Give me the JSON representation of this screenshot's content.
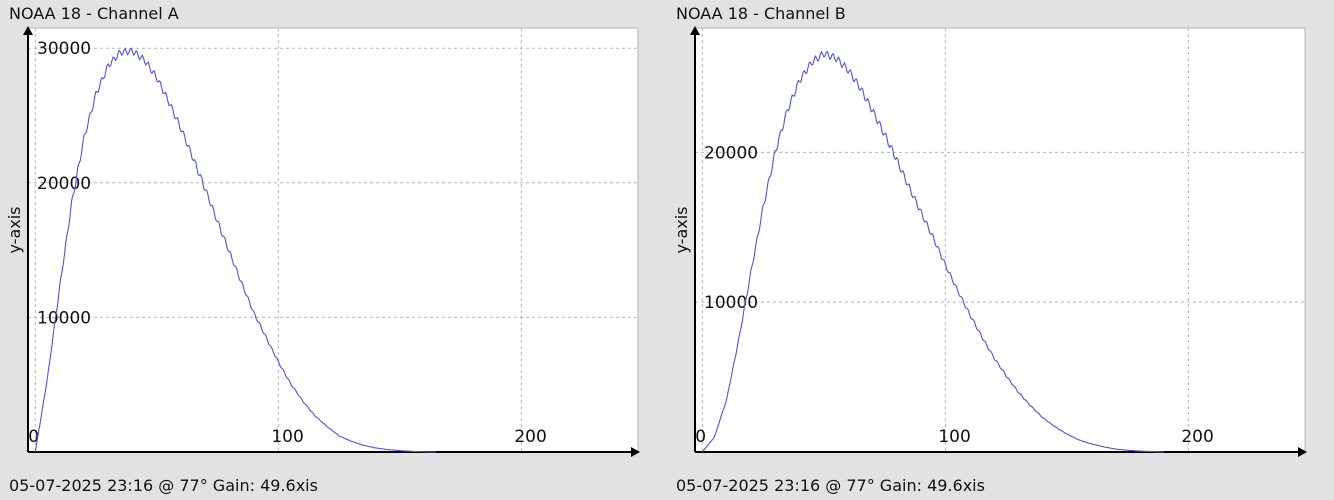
{
  "colors": {
    "line": "#4a58cf",
    "grid": "#b5b5b5",
    "background": "#ffffff",
    "axis": "#000000"
  },
  "panels": [
    {
      "title": "NOAA 18 - Channel A",
      "footer": "05-07-2025 23:16 @ 77° Gain: 49.6",
      "footer_suffix": "xis"
    },
    {
      "title": "NOAA 18 - Channel B",
      "footer": "05-07-2025 23:16 @ 77° Gain: 49.6",
      "footer_suffix": "xis"
    }
  ],
  "chart_data": [
    {
      "type": "line",
      "title": "NOAA 18 - Channel A",
      "xlabel": "",
      "ylabel": "y-axis",
      "xlim": [
        -3,
        248
      ],
      "ylim": [
        0,
        31500
      ],
      "x_ticks": [
        0,
        100,
        200
      ],
      "y_ticks": [
        10000,
        20000,
        30000
      ],
      "grid": true,
      "series": [
        {
          "x": [
            0,
            5,
            10,
            15,
            20,
            25,
            30,
            35,
            40,
            45,
            50,
            55,
            60,
            65,
            70,
            75,
            80,
            85,
            90,
            95,
            100,
            105,
            110,
            115,
            120,
            125,
            130,
            135,
            140,
            145,
            150,
            155,
            160,
            165
          ],
          "y": [
            0,
            5500,
            12200,
            18500,
            23300,
            26600,
            28700,
            29700,
            29800,
            29100,
            27800,
            26000,
            24000,
            21800,
            19500,
            17100,
            14800,
            12500,
            10300,
            8500,
            6700,
            5100,
            3800,
            2700,
            1900,
            1200,
            800,
            500,
            300,
            180,
            100,
            50,
            20,
            0
          ]
        }
      ]
    },
    {
      "type": "line",
      "title": "NOAA 18 - Channel B",
      "xlabel": "",
      "ylabel": "y-axis",
      "xlim": [
        -3,
        248
      ],
      "ylim": [
        0,
        28300
      ],
      "x_ticks": [
        0,
        100,
        200
      ],
      "y_ticks": [
        10000,
        20000
      ],
      "grid": true,
      "series": [
        {
          "x": [
            0,
            5,
            10,
            15,
            20,
            25,
            30,
            35,
            40,
            45,
            50,
            55,
            60,
            65,
            70,
            75,
            80,
            85,
            90,
            95,
            100,
            105,
            110,
            115,
            120,
            125,
            130,
            135,
            140,
            145,
            150,
            155,
            160,
            165,
            170,
            175,
            180,
            185,
            190
          ],
          "y": [
            0,
            1000,
            3500,
            7500,
            12000,
            16300,
            20000,
            22800,
            24800,
            26000,
            26600,
            26300,
            25500,
            24300,
            22800,
            21200,
            19500,
            17700,
            16000,
            14300,
            12500,
            10800,
            9200,
            7700,
            6300,
            5100,
            4000,
            3100,
            2300,
            1700,
            1200,
            800,
            550,
            350,
            200,
            120,
            60,
            30,
            0
          ]
        }
      ]
    }
  ]
}
